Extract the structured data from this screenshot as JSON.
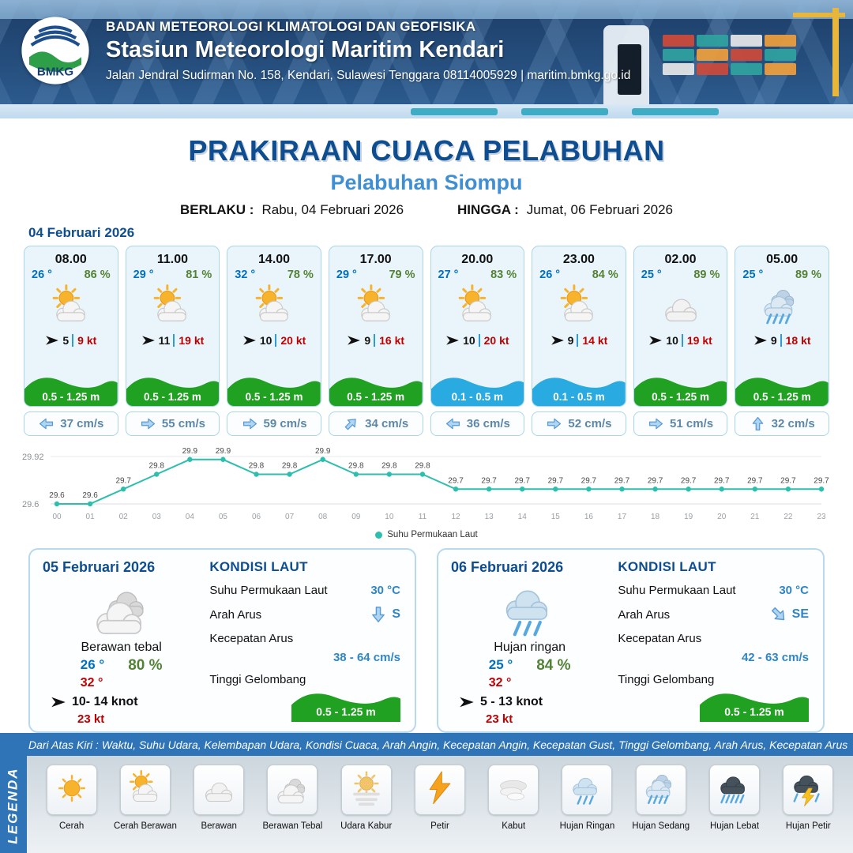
{
  "header": {
    "agency": "BADAN METEOROLOGI KLIMATOLOGI DAN GEOFISIKA",
    "station": "Stasiun Meteorologi Maritim Kendari",
    "address": "Jalan Jendral Sudirman No. 158, Kendari, Sulawesi Tenggara  08114005929 | maritim.bmkg.go.id",
    "logo_text": "BMKG"
  },
  "title": {
    "main": "PRAKIRAAN CUACA PELABUHAN",
    "port": "Pelabuhan Siompu",
    "valid_label": "BERLAKU :",
    "valid_value": "Rabu, 04 Februari 2026",
    "until_label": "HINGGA :",
    "until_value": "Jumat, 06 Februari 2026"
  },
  "forecast": {
    "date": "04 Februari 2026",
    "cards": [
      {
        "time": "08.00",
        "temp": "26 °",
        "humidity": "86 %",
        "icon": "cerah-berawan",
        "wind_speed": "5",
        "wind_gust": "9 kt",
        "wave": "0.5 - 1.25 m",
        "wave_color": "#21a121",
        "current_dir": "left",
        "current_speed": "37 cm/s"
      },
      {
        "time": "11.00",
        "temp": "29 °",
        "humidity": "81 %",
        "icon": "cerah-berawan",
        "wind_speed": "11",
        "wind_gust": "19 kt",
        "wave": "0.5 - 1.25 m",
        "wave_color": "#21a121",
        "current_dir": "right",
        "current_speed": "55 cm/s"
      },
      {
        "time": "14.00",
        "temp": "32 °",
        "humidity": "78 %",
        "icon": "cerah-berawan",
        "wind_speed": "10",
        "wind_gust": "20 kt",
        "wave": "0.5 - 1.25 m",
        "wave_color": "#21a121",
        "current_dir": "right",
        "current_speed": "59 cm/s"
      },
      {
        "time": "17.00",
        "temp": "29 °",
        "humidity": "79 %",
        "icon": "cerah-berawan",
        "wind_speed": "9",
        "wind_gust": "16 kt",
        "wave": "0.5 - 1.25 m",
        "wave_color": "#21a121",
        "current_dir": "up-right",
        "current_speed": "34 cm/s"
      },
      {
        "time": "20.00",
        "temp": "27 °",
        "humidity": "83 %",
        "icon": "cerah-berawan",
        "wind_speed": "10",
        "wind_gust": "20 kt",
        "wave": "0.1 - 0.5 m",
        "wave_color": "#29abe2",
        "current_dir": "left",
        "current_speed": "36 cm/s"
      },
      {
        "time": "23.00",
        "temp": "26 °",
        "humidity": "84 %",
        "icon": "cerah-berawan",
        "wind_speed": "9",
        "wind_gust": "14 kt",
        "wave": "0.1 - 0.5 m",
        "wave_color": "#29abe2",
        "current_dir": "right",
        "current_speed": "52 cm/s"
      },
      {
        "time": "02.00",
        "temp": "25 °",
        "humidity": "89 %",
        "icon": "berawan",
        "wind_speed": "10",
        "wind_gust": "19 kt",
        "wave": "0.5 - 1.25 m",
        "wave_color": "#21a121",
        "current_dir": "right",
        "current_speed": "51 cm/s"
      },
      {
        "time": "05.00",
        "temp": "25 °",
        "humidity": "89 %",
        "icon": "hujan-sedang",
        "wind_speed": "9",
        "wind_gust": "18 kt",
        "wave": "0.5 - 1.25 m",
        "wave_color": "#21a121",
        "current_dir": "up",
        "current_speed": "32 cm/s"
      }
    ]
  },
  "chart_data": {
    "type": "line",
    "x": [
      "00",
      "01",
      "02",
      "03",
      "04",
      "05",
      "06",
      "07",
      "08",
      "09",
      "10",
      "11",
      "12",
      "13",
      "14",
      "15",
      "16",
      "17",
      "18",
      "19",
      "20",
      "21",
      "22",
      "23"
    ],
    "series": [
      {
        "name": "Suhu Permukaan Laut",
        "values": [
          29.6,
          29.6,
          29.7,
          29.8,
          29.9,
          29.9,
          29.8,
          29.8,
          29.9,
          29.8,
          29.8,
          29.8,
          29.7,
          29.7,
          29.7,
          29.7,
          29.7,
          29.7,
          29.7,
          29.7,
          29.7,
          29.7,
          29.7,
          29.7
        ]
      }
    ],
    "ylim": [
      29.6,
      29.92
    ],
    "yticks": [
      "29.92",
      "29.6"
    ],
    "line_color": "#2cbfae",
    "grid": "minimal",
    "legend_position": "bottom"
  },
  "summaries": [
    {
      "date": "05 Februari 2026",
      "icon": "berawan-tebal",
      "condition": "Berawan tebal",
      "temp_min": "26 °",
      "humidity": "80 %",
      "temp_max": "32 °",
      "wind": "10- 14 knot",
      "gust": "23 kt",
      "sea": {
        "title": "KONDISI LAUT",
        "sst_label": "Suhu Permukaan Laut",
        "sst": "30 °C",
        "dir_label": "Arah Arus",
        "dir": "S",
        "dir_arrow": "down",
        "speed_label": "Kecepatan Arus",
        "speed": "38 - 64 cm/s",
        "wave_label": "Tinggi Gelombang",
        "wave": "0.5 - 1.25 m",
        "wave_color": "#21a121"
      }
    },
    {
      "date": "06 Februari 2026",
      "icon": "hujan-ringan",
      "condition": "Hujan ringan",
      "temp_min": "25 °",
      "humidity": "84 %",
      "temp_max": "32 °",
      "wind": "5 - 13 knot",
      "gust": "23 kt",
      "sea": {
        "title": "KONDISI LAUT",
        "sst_label": "Suhu Permukaan Laut",
        "sst": "30 °C",
        "dir_label": "Arah Arus",
        "dir": "SE",
        "dir_arrow": "down-right",
        "speed_label": "Kecepatan Arus",
        "speed": "42 - 63 cm/s",
        "wave_label": "Tinggi Gelombang",
        "wave": "0.5 - 1.25 m",
        "wave_color": "#21a121"
      }
    }
  ],
  "legend": {
    "bar_text": "Dari Atas Kiri : Waktu, Suhu Udara, Kelembapan Udara, Kondisi Cuaca, Arah Angin, Kecepatan Angin, Kecepatan Gust, Tinggi Gelombang, Arah Arus, Kecepatan Arus",
    "title": "LEGENDA",
    "items": [
      {
        "label": "Cerah",
        "icon": "cerah"
      },
      {
        "label": "Cerah Berawan",
        "icon": "cerah-berawan"
      },
      {
        "label": "Berawan",
        "icon": "berawan"
      },
      {
        "label": "Berawan Tebal",
        "icon": "berawan-tebal"
      },
      {
        "label": "Udara Kabur",
        "icon": "udara-kabur"
      },
      {
        "label": "Petir",
        "icon": "petir"
      },
      {
        "label": "Kabut",
        "icon": "kabut"
      },
      {
        "label": "Hujan Ringan",
        "icon": "hujan-ringan"
      },
      {
        "label": "Hujan Sedang",
        "icon": "hujan-sedang"
      },
      {
        "label": "Hujan Lebat",
        "icon": "hujan-lebat"
      },
      {
        "label": "Hujan Petir",
        "icon": "hujan-petir"
      }
    ]
  }
}
